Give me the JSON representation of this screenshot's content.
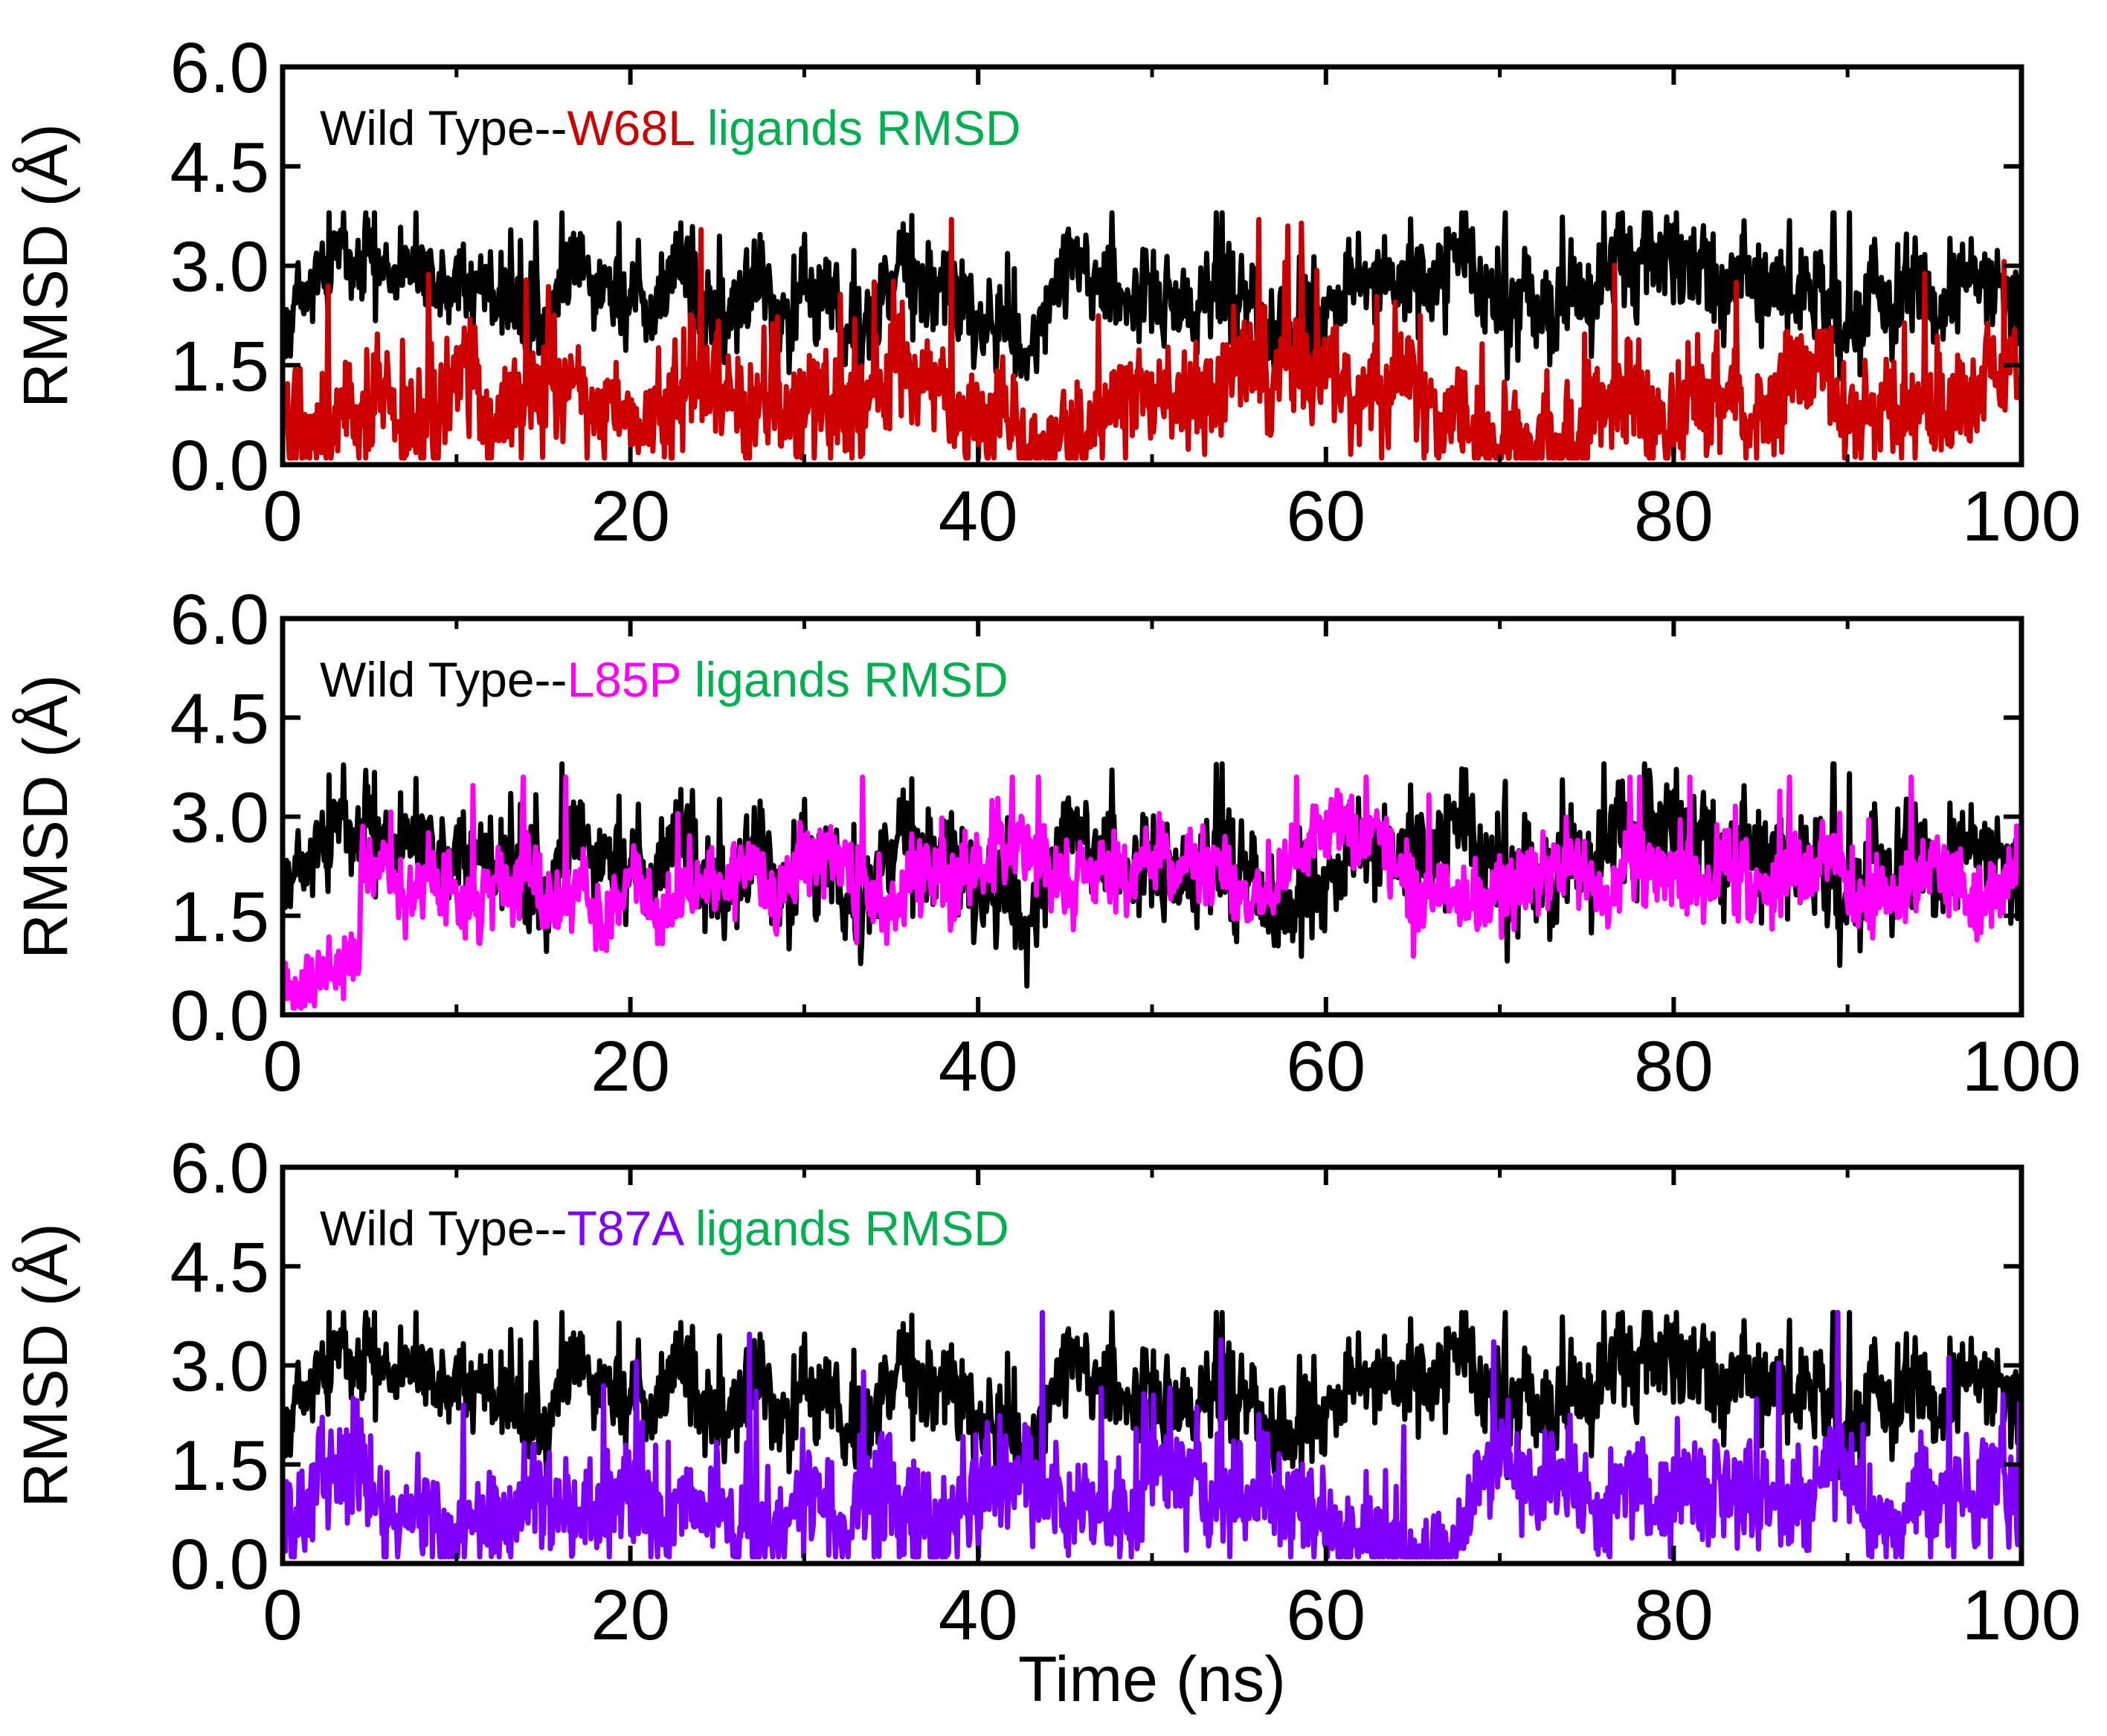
{
  "chart_data": [
    {
      "type": "line",
      "title_parts": [
        {
          "text": "Wild Type--",
          "color": "#000000"
        },
        {
          "text": "W68L",
          "color": "#cc0000"
        },
        {
          "text": " ligands RMSD",
          "color": "#00b050"
        }
      ],
      "xlabel": "",
      "ylabel": "RMSD (Å)",
      "xlim": [
        0,
        100
      ],
      "ylim": [
        0,
        6.0
      ],
      "xticks": [
        "0",
        "20",
        "40",
        "60",
        "80",
        "100"
      ],
      "yticks": [
        "0.0",
        "1.5",
        "3.0",
        "4.5",
        "6.0"
      ],
      "series": [
        {
          "name": "Wild Type",
          "color": "#000000",
          "mean": 2.6,
          "spread": 0.45,
          "min": 1.3,
          "max": 3.8,
          "seed": 11
        },
        {
          "name": "W68L",
          "color": "#cc0000",
          "mean": 0.9,
          "spread": 0.55,
          "min": 0.1,
          "max": 3.7,
          "seed": 23
        }
      ]
    },
    {
      "type": "line",
      "title_parts": [
        {
          "text": "Wild Type--",
          "color": "#000000"
        },
        {
          "text": "L85P",
          "color": "#ff00ff"
        },
        {
          "text": " ligands RMSD",
          "color": "#00b050"
        }
      ],
      "xlabel": "",
      "ylabel": "RMSD (Å)",
      "xlim": [
        0,
        100
      ],
      "ylim": [
        0,
        6.0
      ],
      "xticks": [
        "0",
        "20",
        "40",
        "60",
        "80",
        "100"
      ],
      "yticks": [
        "0.0",
        "1.5",
        "3.0",
        "4.5",
        "6.0"
      ],
      "series": [
        {
          "name": "Wild Type",
          "color": "#000000",
          "mean": 2.3,
          "spread": 0.5,
          "min": 0.3,
          "max": 3.8,
          "seed": 11
        },
        {
          "name": "L85P",
          "color": "#ff00ff",
          "mean": 2.0,
          "spread": 0.35,
          "min": 0.1,
          "max": 3.6,
          "seed": 37
        }
      ]
    },
    {
      "type": "line",
      "title_parts": [
        {
          "text": "Wild Type--",
          "color": "#000000"
        },
        {
          "text": "T87A",
          "color": "#7f00ff"
        },
        {
          "text": " ligands RMSD",
          "color": "#00b050"
        }
      ],
      "xlabel": "Time (ns)",
      "ylabel": "RMSD (Å)",
      "xlim": [
        0,
        100
      ],
      "ylim": [
        0,
        6.0
      ],
      "xticks": [
        "0",
        "20",
        "40",
        "60",
        "80",
        "100"
      ],
      "yticks": [
        "0.0",
        "1.5",
        "3.0",
        "4.5",
        "6.0"
      ],
      "series": [
        {
          "name": "Wild Type",
          "color": "#000000",
          "mean": 2.6,
          "spread": 0.45,
          "min": 1.3,
          "max": 3.8,
          "seed": 11
        },
        {
          "name": "T87A",
          "color": "#7f00ff",
          "mean": 0.95,
          "spread": 0.55,
          "min": 0.1,
          "max": 3.8,
          "seed": 51
        }
      ]
    }
  ]
}
